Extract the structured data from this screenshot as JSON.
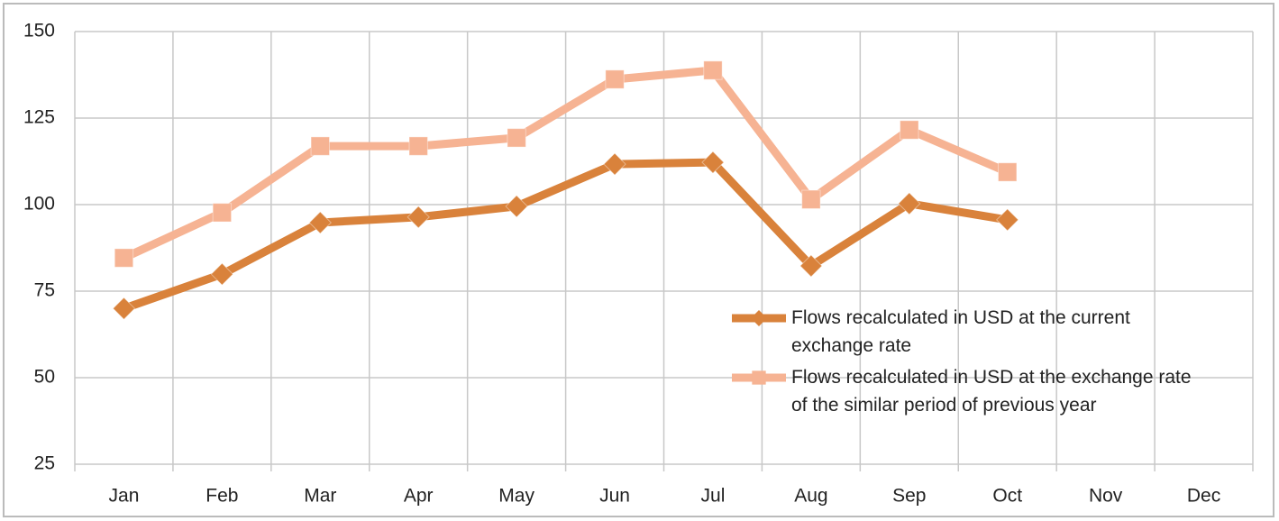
{
  "chart_data": {
    "type": "line",
    "categories": [
      "Jan",
      "Feb",
      "Mar",
      "Apr",
      "May",
      "Jun",
      "Jul",
      "Aug",
      "Sep",
      "Oct",
      "Nov",
      "Dec"
    ],
    "series": [
      {
        "name": "Flows recalculated in USD at the current exchange rate",
        "color": "#d9823b",
        "marker": "diamond",
        "values": [
          70,
          79.9,
          94.8,
          96.4,
          99.5,
          111.7,
          112.2,
          82.3,
          100.3,
          95.6,
          null,
          null
        ]
      },
      {
        "name": "Flows recalculated in USD at the exchange rate of the similar period of previous year",
        "color": "#f6b393",
        "marker": "square",
        "values": [
          84.6,
          97.7,
          116.9,
          116.9,
          119.3,
          136.2,
          138.8,
          101.5,
          121.6,
          109.4,
          null,
          null
        ]
      }
    ],
    "ylim": [
      25,
      150
    ],
    "yticks": [
      25,
      50,
      75,
      100,
      125,
      150
    ],
    "grid": true
  }
}
